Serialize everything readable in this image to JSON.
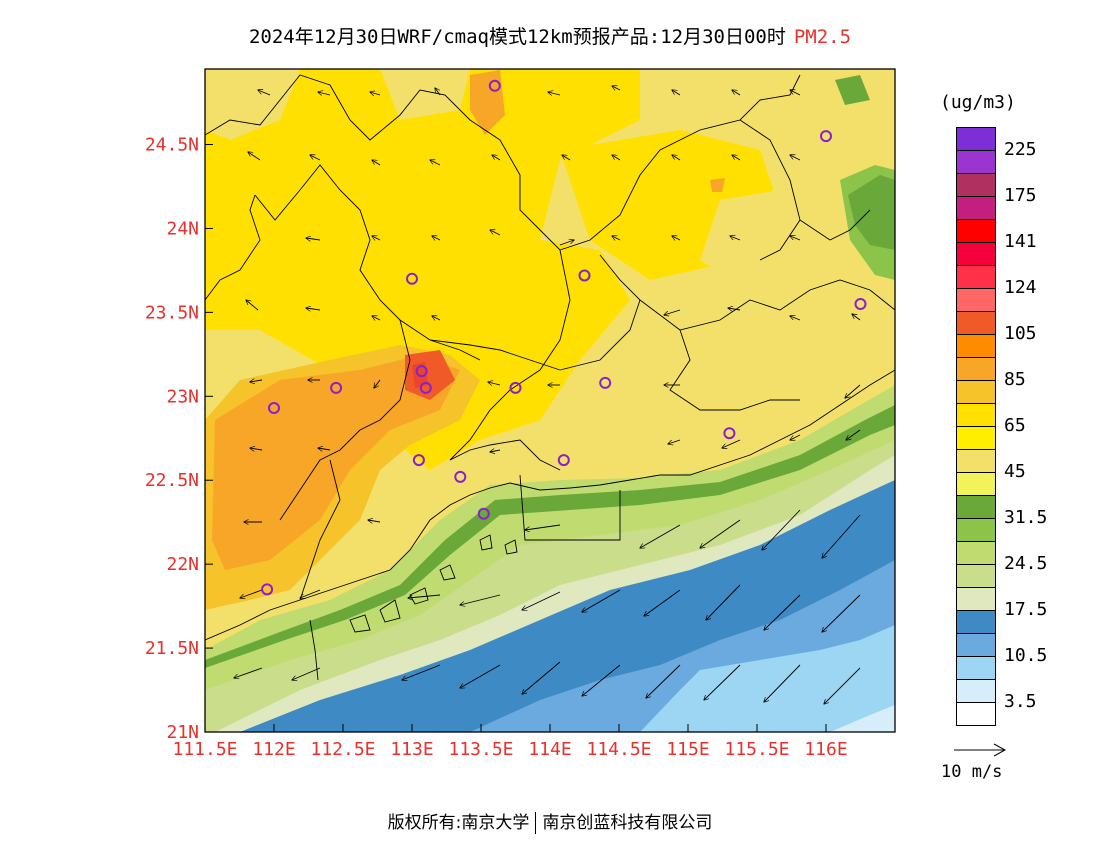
{
  "title": {
    "main": "2024年12月30日WRF/cmaq模式12km预报产品:12月30日00时",
    "variable": "PM2.5"
  },
  "map": {
    "lon_range": [
      111.5,
      116.5
    ],
    "lat_range": [
      21,
      24.95
    ],
    "lon_ticks": [
      "111.5E",
      "112E",
      "112.5E",
      "113E",
      "113.5E",
      "114E",
      "114.5E",
      "115E",
      "115.5E",
      "116E"
    ],
    "lat_ticks": [
      "21N",
      "21.5N",
      "22N",
      "22.5N",
      "23N",
      "23.5N",
      "24N",
      "24.5N"
    ],
    "tick_color": "#e8312c",
    "stations": [
      {
        "lon": 113.6,
        "lat": 24.85
      },
      {
        "lon": 116.0,
        "lat": 24.55
      },
      {
        "lon": 113.0,
        "lat": 23.7
      },
      {
        "lon": 114.25,
        "lat": 23.72
      },
      {
        "lon": 116.25,
        "lat": 23.55
      },
      {
        "lon": 113.07,
        "lat": 23.15
      },
      {
        "lon": 112.45,
        "lat": 23.05
      },
      {
        "lon": 113.1,
        "lat": 23.05
      },
      {
        "lon": 113.75,
        "lat": 23.05
      },
      {
        "lon": 114.4,
        "lat": 23.08
      },
      {
        "lon": 112.0,
        "lat": 22.93
      },
      {
        "lon": 115.3,
        "lat": 22.78
      },
      {
        "lon": 113.05,
        "lat": 22.62
      },
      {
        "lon": 114.1,
        "lat": 22.62
      },
      {
        "lon": 113.35,
        "lat": 22.52
      },
      {
        "lon": 113.52,
        "lat": 22.3
      },
      {
        "lon": 111.95,
        "lat": 21.85
      }
    ]
  },
  "legend": {
    "unit": "(ug/m3)",
    "colors": [
      "#7d2ed6",
      "#9b35cf",
      "#b03060",
      "#c41e80",
      "#ff0000",
      "#f5003c",
      "#ff3048",
      "#ff6666",
      "#f05a28",
      "#ff8c00",
      "#f7a628",
      "#f6c32a",
      "#ffe000",
      "#ffee00",
      "#f2e06a",
      "#f2f25a",
      "#6aa83a",
      "#8cc44a",
      "#c0dc70",
      "#c9dd8a",
      "#e0e8c0",
      "#3e8ac4",
      "#6aaade",
      "#9dd6f2",
      "#d6eefa",
      "#ffffff"
    ],
    "labels": [
      "225",
      "175",
      "141",
      "124",
      "105",
      "85",
      "65",
      "45",
      "31.5",
      "24.5",
      "17.5",
      "10.5",
      "3.5"
    ],
    "wind_label": "10 m/s"
  },
  "footer": {
    "copyright": "版权所有:南京大学",
    "company": "南京创蓝科技有限公司"
  }
}
